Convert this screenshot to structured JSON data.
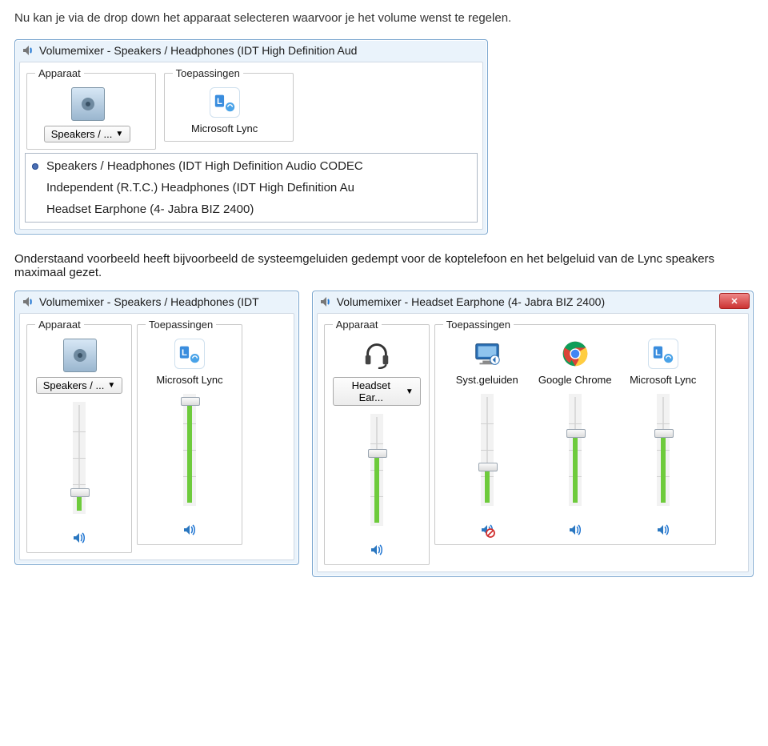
{
  "intro_text": "Nu kan je via de drop down het apparaat selecteren  waarvoor je het volume wenst te regelen.",
  "para2_text": "Onderstaand voorbeeld heeft bijvoorbeeld de systeemgeluiden gedempt voor de koptelefoon en het belgeluid van de Lync speakers maximaal gezet.",
  "section_labels": {
    "device": "Apparaat",
    "apps": "Toepassingen"
  },
  "win1": {
    "title": "Volumemixer - Speakers / Headphones (IDT High Definition Aud",
    "device_button": "Speakers / ...",
    "app_label": "Microsoft Lync",
    "dropdown": {
      "items": [
        {
          "label": "Speakers / Headphones (IDT High Definition Audio CODEC",
          "selected": true
        },
        {
          "label": "Independent (R.T.C.) Headphones (IDT High Definition Au",
          "selected": false
        },
        {
          "label": "Headset Earphone (4- Jabra BIZ 2400)",
          "selected": false
        }
      ]
    }
  },
  "win2": {
    "title": "Volumemixer - Speakers / Headphones (IDT",
    "device_button": "Speakers / ...",
    "columns": [
      {
        "kind": "device",
        "icon": "speaker",
        "label": "Speakers / ...",
        "level": 21,
        "muted": false
      },
      {
        "kind": "app",
        "icon": "lync",
        "label": "Microsoft Lync",
        "level": 100,
        "muted": false
      }
    ]
  },
  "win3": {
    "title": "Volumemixer - Headset Earphone (4- Jabra BIZ 2400)",
    "device_button": "Headset Ear...",
    "columns": [
      {
        "kind": "device",
        "icon": "headset",
        "label": "Headset Ear...",
        "level": 70,
        "muted": false
      },
      {
        "kind": "app",
        "icon": "monitor",
        "label": "Syst.geluiden",
        "level": 38,
        "muted": true
      },
      {
        "kind": "app",
        "icon": "chrome",
        "label": "Google Chrome",
        "level": 70,
        "muted": false
      },
      {
        "kind": "app",
        "icon": "lync",
        "label": "Microsoft Lync",
        "level": 70,
        "muted": false
      }
    ]
  },
  "slider": {
    "fill_color": "#6ecb3c",
    "ticks": [
      25,
      50,
      75
    ]
  },
  "colors": {
    "wave": "#2176d2",
    "muted_overlay": "#d03030"
  }
}
